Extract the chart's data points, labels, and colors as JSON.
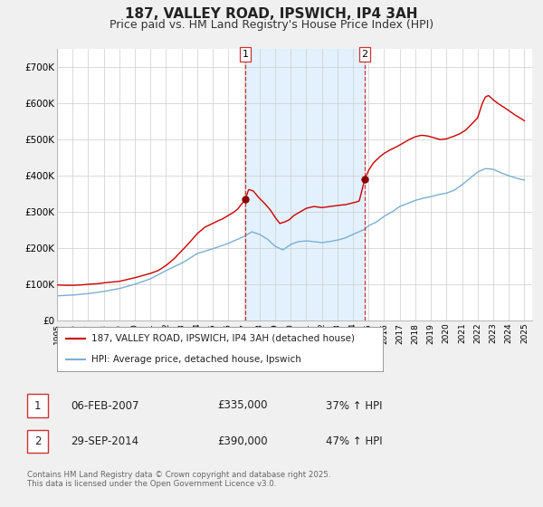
{
  "title": "187, VALLEY ROAD, IPSWICH, IP4 3AH",
  "subtitle": "Price paid vs. HM Land Registry's House Price Index (HPI)",
  "title_fontsize": 11,
  "subtitle_fontsize": 9,
  "legend_entry1": "187, VALLEY ROAD, IPSWICH, IP4 3AH (detached house)",
  "legend_entry2": "HPI: Average price, detached house, Ipswich",
  "sale1_date": "06-FEB-2007",
  "sale1_price": "£335,000",
  "sale1_hpi": "37% ↑ HPI",
  "sale2_date": "29-SEP-2014",
  "sale2_price": "£390,000",
  "sale2_hpi": "47% ↑ HPI",
  "copyright": "Contains HM Land Registry data © Crown copyright and database right 2025.\nThis data is licensed under the Open Government Licence v3.0.",
  "line1_color": "#cc0000",
  "line2_color": "#7bafd4",
  "marker_color": "#880000",
  "vline1_color": "#cc3333",
  "vline2_color": "#cc3333",
  "shade_color": "#ddeeff",
  "grid_color": "#cccccc",
  "background_color": "#f0f0f0",
  "plot_bg_color": "#ffffff",
  "legend_bg_color": "#ffffff",
  "ylim": [
    0,
    750000
  ],
  "xlim_start": 1995.0,
  "xlim_end": 2025.5,
  "sale1_x": 2007.09,
  "sale1_y": 335000,
  "sale2_x": 2014.75,
  "sale2_y": 390000,
  "yticks": [
    0,
    100000,
    200000,
    300000,
    400000,
    500000,
    600000,
    700000
  ],
  "ylabels": [
    "£0",
    "£100K",
    "£200K",
    "£300K",
    "£400K",
    "£500K",
    "£600K",
    "£700K"
  ]
}
